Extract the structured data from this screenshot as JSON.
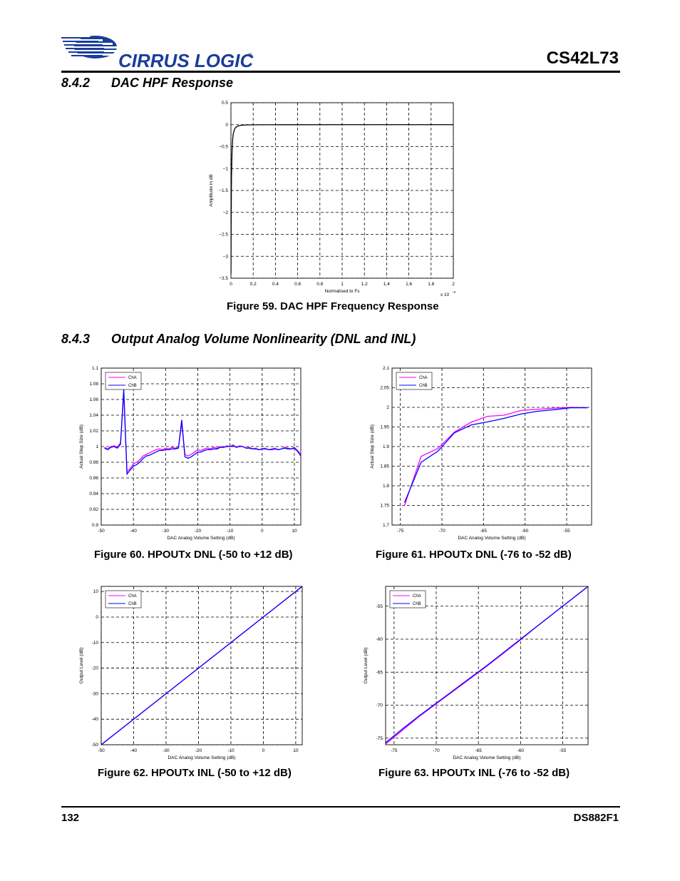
{
  "header": {
    "brand": "CIRRUS LOGIC",
    "brand_mark": "®",
    "doc_title": "CS42L73"
  },
  "sections": [
    {
      "number": "8.4.2",
      "title": "DAC HPF Response"
    },
    {
      "number": "8.4.3",
      "title": "Output Analog Volume Nonlinearity (DNL and INL)"
    }
  ],
  "figures": [
    {
      "caption": "Figure 59.  DAC HPF Frequency Response"
    },
    {
      "caption": "Figure 60.  HPOUTx DNL (-50 to +12 dB)"
    },
    {
      "caption": "Figure 61.  HPOUTx DNL (-76 to -52 dB)"
    },
    {
      "caption": "Figure 62.  HPOUTx INL (-50 to +12 dB)"
    },
    {
      "caption": "Figure 63.  HPOUTx INL (-76 to -52 dB)"
    }
  ],
  "chart_data": [
    {
      "type": "line",
      "xlabel": "Normalised to Fs",
      "ylabel": "Amplitude in dB",
      "x_multiplier": "x 10",
      "x_multiplier_exp": "−3",
      "xlim": [
        0,
        2
      ],
      "ylim": [
        -3.5,
        0.5
      ],
      "xticks": [
        "0",
        "0.2",
        "0.4",
        "0.6",
        "0.8",
        "1",
        "1.2",
        "1.4",
        "1.6",
        "1.8",
        "2"
      ],
      "yticks": [
        "−3.5",
        "−3",
        "−2.5",
        "−2",
        "−1.5",
        "−1",
        "−0.5",
        "0",
        "0.5"
      ],
      "grid": true,
      "series": [
        {
          "color": "#000000",
          "x": [
            0.0005,
            0.002,
            0.005,
            0.01,
            0.015,
            0.02,
            0.03,
            0.04,
            0.06,
            0.08,
            0.1,
            0.15,
            0.2,
            0.3,
            0.5,
            1.0,
            1.5,
            2.0
          ],
          "y": [
            -3.4,
            -2.2,
            -1.2,
            -0.6,
            -0.35,
            -0.22,
            -0.12,
            -0.07,
            -0.035,
            -0.02,
            -0.012,
            -0.006,
            -0.004,
            -0.002,
            -0.001,
            0,
            0,
            0
          ]
        }
      ]
    },
    {
      "type": "line",
      "xlabel": "DAC Analog Volume Setting (dB)",
      "ylabel": "Actual Step Size (dB)",
      "xlim": [
        -50,
        12
      ],
      "ylim": [
        0.9,
        1.1
      ],
      "xticks": [
        "-50",
        "-40",
        "-30",
        "-20",
        "-10",
        "0",
        "10"
      ],
      "yticks": [
        "0.9",
        "0.92",
        "0.94",
        "0.96",
        "0.98",
        "1",
        "1.02",
        "1.04",
        "1.06",
        "1.08",
        "1.1"
      ],
      "grid": true,
      "legend": "top-left",
      "series": [
        {
          "name": "ChA",
          "color": "#ff00ff",
          "x": [
            -49,
            -48,
            -47,
            -46,
            -45,
            -44,
            -43,
            -42,
            -41,
            -40,
            -39,
            -38,
            -37,
            -36,
            -35,
            -34,
            -33,
            -32,
            -31,
            -30,
            -29,
            -28,
            -27,
            -26,
            -25,
            -24,
            -23,
            -22,
            -21,
            -20,
            -19,
            -18,
            -17,
            -16,
            -15,
            -14,
            -13,
            -12,
            -11,
            -10,
            -9,
            -8,
            -7,
            -6,
            -5,
            -4,
            -3,
            -2,
            -1,
            0,
            1,
            2,
            3,
            4,
            5,
            6,
            7,
            8,
            9,
            10,
            11,
            12
          ],
          "y": [
            0.999,
            0.997,
            1.0,
            1.001,
            0.999,
            1.005,
            1.068,
            0.968,
            0.972,
            0.978,
            0.98,
            0.983,
            0.988,
            0.99,
            0.992,
            0.994,
            0.996,
            0.997,
            0.996,
            0.998,
            0.997,
            0.999,
            0.998,
            0.999,
            1.03,
            0.99,
            0.988,
            0.99,
            0.993,
            0.996,
            0.995,
            0.997,
            0.998,
            0.997,
            0.999,
            0.998,
            1.0,
            0.999,
            1.001,
            1.0,
            1.002,
            0.999,
            1.001,
            1.0,
            0.998,
            0.999,
            0.997,
            0.998,
            0.996,
            0.997,
            0.998,
            0.996,
            0.997,
            0.998,
            0.996,
            0.997,
            0.999,
            0.998,
            0.997,
            0.999,
            0.995,
            0.99
          ]
        },
        {
          "name": "ChB",
          "color": "#0000ff",
          "x": [
            -49,
            -48,
            -47,
            -46,
            -45,
            -44,
            -43,
            -42,
            -41,
            -40,
            -39,
            -38,
            -37,
            -36,
            -35,
            -34,
            -33,
            -32,
            -31,
            -30,
            -29,
            -28,
            -27,
            -26,
            -25,
            -24,
            -23,
            -22,
            -21,
            -20,
            -19,
            -18,
            -17,
            -16,
            -15,
            -14,
            -13,
            -12,
            -11,
            -10,
            -9,
            -8,
            -7,
            -6,
            -5,
            -4,
            -3,
            -2,
            -1,
            0,
            1,
            2,
            3,
            4,
            5,
            6,
            7,
            8,
            9,
            10,
            11,
            12
          ],
          "y": [
            0.998,
            0.996,
            0.999,
            1.0,
            0.998,
            1.003,
            1.073,
            0.965,
            0.97,
            0.975,
            0.977,
            0.98,
            0.985,
            0.988,
            0.989,
            0.991,
            0.993,
            0.995,
            0.995,
            0.996,
            0.996,
            0.997,
            0.997,
            0.998,
            1.034,
            0.987,
            0.985,
            0.987,
            0.99,
            0.993,
            0.993,
            0.995,
            0.996,
            0.996,
            0.997,
            0.997,
            0.999,
            0.999,
            1.0,
            1.0,
            1.001,
            0.999,
            1.0,
            1.0,
            0.998,
            0.998,
            0.997,
            0.997,
            0.996,
            0.997,
            0.997,
            0.996,
            0.996,
            0.997,
            0.996,
            0.997,
            0.998,
            0.997,
            0.997,
            0.998,
            0.994,
            0.988
          ]
        }
      ]
    },
    {
      "type": "line",
      "xlabel": "DAC Analog Volume Setting (dB)",
      "ylabel": "Actual Step Size (dB)",
      "xlim": [
        -76,
        -52
      ],
      "ylim": [
        1.7,
        2.1
      ],
      "xticks": [
        "-75",
        "-70",
        "-65",
        "-60",
        "-55"
      ],
      "yticks": [
        "1.7",
        "1.75",
        "1.8",
        "1.85",
        "1.9",
        "1.95",
        "2",
        "2.05",
        "2.1"
      ],
      "grid": true,
      "legend": "top-left",
      "series": [
        {
          "name": "ChA",
          "color": "#ff00ff",
          "x": [
            -74.5,
            -72.5,
            -70.5,
            -68.5,
            -66.5,
            -64.5,
            -62.5,
            -60.5,
            -58.5,
            -56.5,
            -54.5,
            -52.5
          ],
          "y": [
            1.75,
            1.875,
            1.895,
            1.937,
            1.962,
            1.977,
            1.98,
            1.992,
            1.995,
            1.998,
            2.0,
            1.999
          ]
        },
        {
          "name": "ChB",
          "color": "#0000ff",
          "x": [
            -74.5,
            -72.5,
            -70.5,
            -68.5,
            -66.5,
            -64.5,
            -62.5,
            -60.5,
            -58.5,
            -56.5,
            -54.5,
            -52.5
          ],
          "y": [
            1.757,
            1.86,
            1.888,
            1.935,
            1.955,
            1.963,
            1.972,
            1.983,
            1.99,
            1.994,
            1.999,
            1.999
          ]
        }
      ]
    },
    {
      "type": "line",
      "xlabel": "DAC Analog Volume Setting (dB)",
      "ylabel": "Output Level (dB)",
      "xlim": [
        -50,
        12
      ],
      "ylim": [
        -50,
        12
      ],
      "xticks": [
        "-50",
        "-40",
        "-30",
        "-20",
        "-10",
        "0",
        "10"
      ],
      "yticks": [
        "-50",
        "-40",
        "-30",
        "-20",
        "-10",
        "0",
        "10"
      ],
      "grid": true,
      "legend": "top-left",
      "series": [
        {
          "name": "ChA",
          "color": "#ff00ff",
          "x": [
            -50,
            12
          ],
          "y": [
            -50,
            12
          ]
        },
        {
          "name": "ChB",
          "color": "#0000ff",
          "x": [
            -50,
            12
          ],
          "y": [
            -50,
            12
          ]
        }
      ]
    },
    {
      "type": "line",
      "xlabel": "DAC Analog Volume Setting (dB)",
      "ylabel": "Output Level (dB)",
      "xlim": [
        -76,
        -52
      ],
      "ylim": [
        -76,
        -52
      ],
      "xticks": [
        "-75",
        "-70",
        "-65",
        "-60",
        "-55"
      ],
      "yticks": [
        "-75",
        "-70",
        "-65",
        "-60",
        "-55"
      ],
      "grid": true,
      "legend": "top-left",
      "series": [
        {
          "name": "ChA",
          "color": "#ff00ff",
          "x": [
            -76,
            -74,
            -72,
            -70,
            -68,
            -66,
            -64,
            -62,
            -60,
            -58,
            -56,
            -54,
            -52
          ],
          "y": [
            -75.9,
            -73.8,
            -71.7,
            -69.8,
            -67.9,
            -66.0,
            -64.1,
            -62.1,
            -60.1,
            -58.0,
            -56.0,
            -54.0,
            -52.0
          ]
        },
        {
          "name": "ChB",
          "color": "#0000ff",
          "x": [
            -76,
            -74,
            -72,
            -70,
            -68,
            -66,
            -64,
            -62,
            -60,
            -58,
            -56,
            -54,
            -52
          ],
          "y": [
            -75.7,
            -73.6,
            -71.6,
            -69.7,
            -67.8,
            -65.9,
            -64.0,
            -62.0,
            -60.0,
            -58.0,
            -56.0,
            -54.0,
            -52.0
          ]
        }
      ]
    }
  ],
  "footer": {
    "page_number": "132",
    "doc_id": "DS882F1"
  }
}
